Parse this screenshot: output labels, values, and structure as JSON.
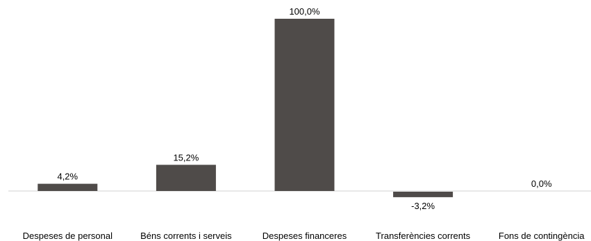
{
  "chart_data": {
    "type": "bar",
    "categories": [
      "Despeses de personal",
      "Béns corrents i serveis",
      "Despeses financeres",
      "Transferències corrents",
      "Fons de contingència"
    ],
    "values": [
      4.2,
      15.2,
      100.0,
      -3.2,
      0.0
    ],
    "value_labels": [
      "4,2%",
      "15,2%",
      "100,0%",
      "-3,2%",
      "0,0%"
    ],
    "title": "",
    "xlabel": "",
    "ylabel": "",
    "ylim": [
      -4,
      100
    ],
    "grid": false,
    "legend": "none",
    "colors": {
      "bar": "#4f4b49",
      "axis": "#d0d0d0"
    }
  }
}
